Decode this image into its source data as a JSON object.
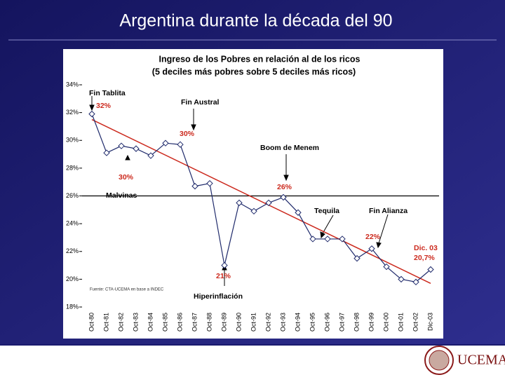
{
  "slide_title": "Argentina durante la década del 90",
  "logo": "UCEMA",
  "chart_data": {
    "type": "line",
    "title": [
      "Ingreso de los Pobres en relación al de los ricos",
      "(5 deciles más pobres sobre 5 deciles más ricos)"
    ],
    "categories": [
      "Oct-80",
      "Oct-81",
      "Oct-82",
      "Oct-83",
      "Oct-84",
      "Oct-85",
      "Oct-86",
      "Oct-87",
      "Oct-88",
      "Oct-89",
      "Oct-90",
      "Oct-91",
      "Oct-92",
      "Oct-93",
      "Oct-94",
      "Oct-95",
      "Oct-96",
      "Oct-97",
      "Oct-98",
      "Oct-99",
      "Oct-00",
      "Oct-01",
      "Oct-02",
      "Dic-03"
    ],
    "series": [
      {
        "color": "#1f2a6b",
        "values": [
          31.9,
          29.1,
          29.6,
          29.4,
          28.9,
          29.8,
          29.7,
          26.7,
          26.9,
          21.0,
          25.5,
          24.9,
          25.5,
          25.9,
          24.8,
          22.9,
          22.9,
          22.9,
          21.5,
          22.2,
          20.9,
          20.0,
          19.8,
          20.7
        ]
      }
    ],
    "trend_line": {
      "color": "#cc2a1e",
      "values": [
        31.5,
        19.7
      ]
    },
    "reference_line": 26,
    "ylim": [
      18,
      34
    ],
    "yticks": [
      {
        "value": 18,
        "label": "18%"
      },
      {
        "value": 20,
        "label": "20%"
      },
      {
        "value": 22,
        "label": "22%"
      },
      {
        "value": 24,
        "label": "24%"
      },
      {
        "value": 26,
        "label": "26%"
      },
      {
        "value": 28,
        "label": "28%"
      },
      {
        "value": 30,
        "label": "30%"
      },
      {
        "value": 32,
        "label": "32%"
      },
      {
        "value": 34,
        "label": "34%"
      }
    ],
    "annotations": [
      {
        "text": "Fin Tablita",
        "color": "#000000"
      },
      {
        "text": "32%",
        "color": "#cc2a1e"
      },
      {
        "text": "Fin  Austral",
        "color": "#000000"
      },
      {
        "text": "30%",
        "color": "#cc2a1e"
      },
      {
        "text": "30%",
        "color": "#cc2a1e"
      },
      {
        "text": "Malvinas",
        "color": "#000000"
      },
      {
        "text": "Boom de Menem",
        "color": "#000000"
      },
      {
        "text": "26%",
        "color": "#cc2a1e"
      },
      {
        "text": "Tequila",
        "color": "#000000"
      },
      {
        "text": "Fin Alianza",
        "color": "#000000"
      },
      {
        "text": "22%",
        "color": "#cc2a1e"
      },
      {
        "text": "Dic. 03",
        "color": "#cc2a1e"
      },
      {
        "text": "20,7%",
        "color": "#cc2a1e"
      },
      {
        "text": "21%",
        "color": "#cc2a1e"
      },
      {
        "text": "Hiperinflación",
        "color": "#000000"
      }
    ],
    "source": "Fuente: CTA-UCEMA en base a INDEC"
  }
}
